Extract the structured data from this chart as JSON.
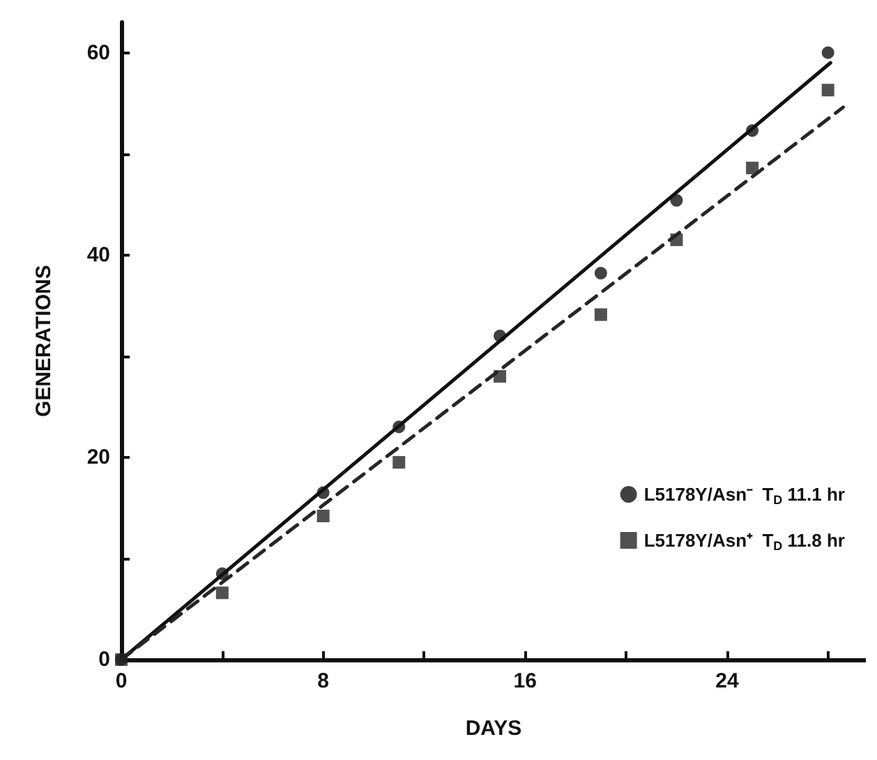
{
  "chart_data": {
    "type": "scatter",
    "xlabel": "DAYS",
    "ylabel": "GENERATIONS",
    "xlim": [
      0,
      29.5
    ],
    "ylim": [
      0,
      63
    ],
    "xticks": [
      0,
      {
        "value": 4,
        "label": null
      },
      8,
      {
        "value": 12,
        "label": null
      },
      16,
      {
        "value": 20,
        "label": null
      },
      24,
      {
        "value": 28,
        "label": null
      }
    ],
    "yticks": [
      0,
      {
        "value": 10,
        "label": null
      },
      20,
      {
        "value": 30,
        "label": null
      },
      40,
      {
        "value": 50,
        "label": null
      },
      60
    ],
    "grid": false,
    "legend": "right",
    "x": [
      0,
      4,
      8,
      11,
      15,
      19,
      22,
      25,
      28
    ],
    "series": [
      {
        "name": "L5178Y/Asn⁻  T$_{D}$ 11.1 hr",
        "marker": "circle",
        "color": "#111111",
        "values": [
          0,
          8.5,
          16.5,
          23,
          32,
          38.2,
          45.4,
          52.3,
          60
        ]
      },
      {
        "name": "L5178Y/Asn⁺  T$_{D}$ 11.8 hr",
        "marker": "square",
        "color": "#262626",
        "values": [
          0,
          6.6,
          14.2,
          19.5,
          28,
          34.1,
          41.5,
          48.6,
          56.3
        ]
      },
      {
        "type": "line",
        "line_style": "solid",
        "marker": "none",
        "color": "#111111",
        "x": [
          0,
          28.1
        ],
        "values": [
          0,
          59
        ]
      },
      {
        "type": "line",
        "line_style": "dashed",
        "marker": "none",
        "color": "#262626",
        "x": [
          0,
          28.6
        ],
        "values": [
          0,
          54.6
        ]
      }
    ]
  }
}
